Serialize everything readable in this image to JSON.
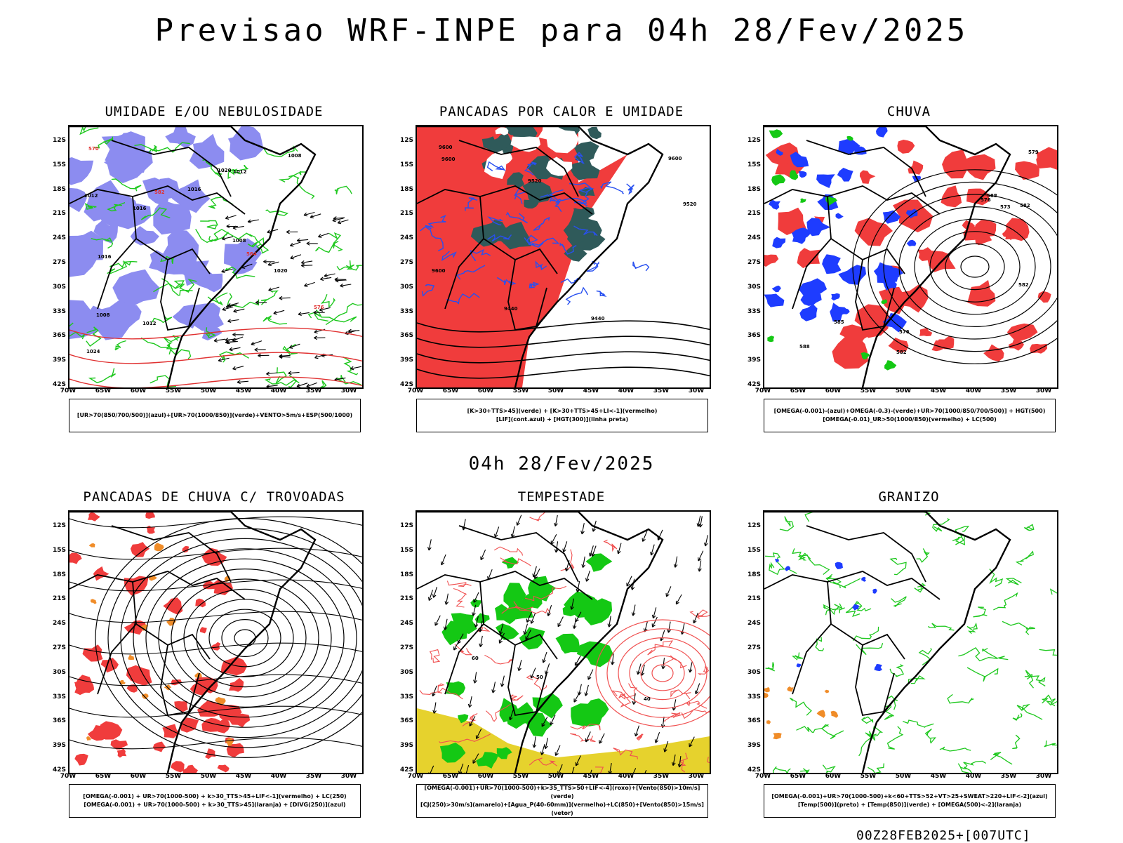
{
  "header": {
    "title": "Previsao WRF-INPE  para 04h 28/Fev/2025",
    "subtitle": "04h 28/Fev/2025",
    "footer": "00Z28FEB2025+[007UTC]"
  },
  "axes": {
    "lat_labels": [
      "12S",
      "15S",
      "18S",
      "21S",
      "24S",
      "27S",
      "30S",
      "33S",
      "36S",
      "39S",
      "42S"
    ],
    "lon_labels": [
      "70W",
      "65W",
      "60W",
      "55W",
      "50W",
      "45W",
      "40W",
      "35W",
      "30W"
    ]
  },
  "colors": {
    "blue_fill": "#8c8cf0",
    "green_line": "#1ec81e",
    "red_fill": "#f03c3c",
    "dark_teal": "#2f5a5a",
    "blue_line": "#2850f0",
    "blue_solid": "#1e3cff",
    "orange": "#f08c28",
    "yellow": "#e6d22d",
    "green_fill": "#14c814"
  },
  "panels": [
    {
      "title": "UMIDADE E/OU NEBULOSIDADE",
      "legend": [
        "[UR>70(850/700/500)](azul)+[UR>70(1000/850)](verde)+VENTO>5m/s+ESP(500/1000)"
      ],
      "labels": [
        "1012",
        "1012",
        "1016",
        "1016",
        "1016",
        "1008",
        "1008",
        "1008",
        "1012",
        "1020",
        "1020",
        "1024",
        "576",
        "570",
        "564",
        "582"
      ]
    },
    {
      "title": "PANCADAS POR CALOR E UMIDADE",
      "legend": [
        "[K>30+TTS>45](verde) + [K>30+TTS>45+LI<-1](vermelho)",
        "[LIF](cont.azul) + [HGT(300)](linha preta)"
      ],
      "labels": [
        "9600",
        "9600",
        "9600",
        "9600",
        "9520",
        "9440",
        "9520",
        "9440"
      ]
    },
    {
      "title": "CHUVA",
      "legend": [
        "[OMEGA(-0.001)-(azul)+OMEGA(-0.3)-(verde)+UR>70(1000/850/700/500)] + HGT(500)",
        "[OMEGA(-0.01)_UR>50(1000/850)(vermelho) + LC(500)"
      ],
      "labels": [
        "588",
        "588",
        "582",
        "582",
        "576",
        "585",
        "582",
        "579",
        "576",
        "573"
      ]
    },
    {
      "title": "PANCADAS DE CHUVA C/ TROVOADAS",
      "legend": [
        "[OMEGA(-0.001) + UR>70(1000-500) + k>30_TTS>45+LIF<-1](vermelho) + LC(250)",
        "[OMEGA(-0.001) + UR>70(1000-500) + k>30_TTS>45](laranja) + [DIVG(250)](azul)"
      ],
      "labels": []
    },
    {
      "title": "TEMPESTADE",
      "legend": [
        "[OMEGA(-0.001)+UR>70(1000-500)+k>35_TTS>50+LIF<-4](roxo)+[Vento(850)>10m/s](verde)",
        "[CJ(250)>30m/s](amarelo)+[Agua_P(40-60mm)](vermelho)+LC(850)+[Vento(850)>15m/s](vetor)"
      ],
      "labels": [
        "60",
        "50",
        "40"
      ]
    },
    {
      "title": "GRANIZO",
      "legend": [
        "[OMEGA(-0.001)+UR>70(1000-500)+k<60+TTS>52+VT>25+SWEAT>220+LIF<-2](azul)",
        "[Temp(500)](preto) + [Temp(850)](verde) + [OMEGA(500)<-2](laranja)"
      ],
      "labels": []
    }
  ]
}
